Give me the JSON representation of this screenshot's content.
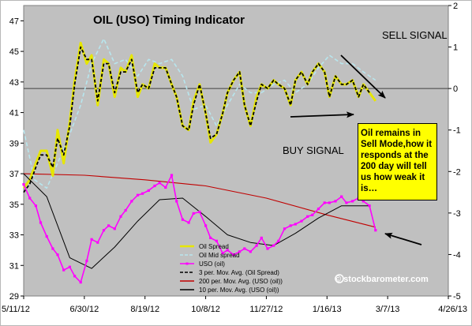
{
  "chart_data": {
    "type": "line",
    "title": "OIL (USO) Timing Indicator",
    "x_tick_labels": [
      "5/11/12",
      "6/30/12",
      "8/19/12",
      "10/8/12",
      "11/27/12",
      "1/16/13",
      "3/7/13",
      "4/26/13"
    ],
    "x_range": [
      "2012-05-11",
      "2013-04-26"
    ],
    "left_axis": {
      "label": "",
      "ylim": [
        29,
        48
      ],
      "ticks": [
        29,
        31,
        33,
        35,
        37,
        39,
        41,
        43,
        45,
        47
      ]
    },
    "right_axis": {
      "label": "",
      "ylim": [
        -5,
        2
      ],
      "ticks": [
        -5,
        -4,
        -3,
        -2,
        -1,
        0,
        1,
        2
      ]
    },
    "reference_lines": [
      {
        "axis": "right",
        "value": 0,
        "color": "#404040"
      }
    ],
    "grid": false,
    "legend": {
      "placement": "bottom-center",
      "items": [
        {
          "label": "Oil Spread",
          "color": "#e6e600",
          "style": "solid"
        },
        {
          "label": "Oil Mid spread",
          "color": "#b7e6ee",
          "style": "dashed"
        },
        {
          "label": "USO (oil)",
          "color": "#ff00ff",
          "style": "solid-markers"
        },
        {
          "label": "3 per. Mov. Avg. (Oil Spread)",
          "color": "#000000",
          "style": "dashed"
        },
        {
          "label": "200 per. Mov. Avg. (USO (oil))",
          "color": "#c00000",
          "style": "solid"
        },
        {
          "label": "10 per. Mov. Avg. (USO (oil))",
          "color": "#000000",
          "style": "solid"
        }
      ]
    },
    "series": [
      {
        "name": "Oil Spread",
        "axis": "right",
        "color": "#e6e600",
        "x": [
          "2012-05-11",
          "2012-05-16",
          "2012-05-21",
          "2012-05-25",
          "2012-05-30",
          "2012-06-04",
          "2012-06-08",
          "2012-06-13",
          "2012-06-18",
          "2012-06-22",
          "2012-06-27",
          "2012-07-02",
          "2012-07-06",
          "2012-07-11",
          "2012-07-16",
          "2012-07-20",
          "2012-07-25",
          "2012-07-30",
          "2012-08-03",
          "2012-08-08",
          "2012-08-13",
          "2012-08-17",
          "2012-08-22",
          "2012-08-27",
          "2012-08-31",
          "2012-09-05",
          "2012-09-10",
          "2012-09-14",
          "2012-09-19",
          "2012-09-24",
          "2012-09-28",
          "2012-10-03",
          "2012-10-08",
          "2012-10-12",
          "2012-10-17",
          "2012-10-22",
          "2012-10-26",
          "2012-10-31",
          "2012-11-05",
          "2012-11-09",
          "2012-11-14",
          "2012-11-19",
          "2012-11-23",
          "2012-11-28",
          "2012-12-03",
          "2012-12-07",
          "2012-12-12",
          "2012-12-17",
          "2012-12-21",
          "2012-12-26",
          "2012-12-31",
          "2013-01-04",
          "2013-01-09",
          "2013-01-14",
          "2013-01-18",
          "2013-01-23",
          "2013-01-28",
          "2013-02-01",
          "2013-02-06",
          "2013-02-11",
          "2013-02-15",
          "2013-02-20",
          "2013-02-25"
        ],
        "values": [
          -2.4,
          -2.2,
          -1.8,
          -1.5,
          -1.5,
          -2.1,
          -1.0,
          -1.8,
          -0.8,
          0.2,
          1.1,
          0.6,
          0.8,
          -0.4,
          0.7,
          0.6,
          -0.2,
          0.5,
          0.4,
          0.8,
          -0.2,
          0.1,
          0.0,
          0.6,
          0.5,
          0.5,
          0.1,
          -0.2,
          -0.9,
          -1.0,
          -0.3,
          0.1,
          -0.6,
          -1.3,
          -1.1,
          -0.6,
          -0.1,
          0.2,
          0.4,
          -0.4,
          -0.9,
          -0.2,
          0.1,
          0.0,
          0.2,
          0.1,
          0.0,
          -0.4,
          0.2,
          0.4,
          0.1,
          0.4,
          0.6,
          0.4,
          -0.2,
          0.3,
          0.1,
          0.1,
          0.2,
          -0.2,
          0.1,
          -0.1,
          -0.3
        ]
      },
      {
        "name": "Oil Mid spread",
        "axis": "right",
        "color": "#b7e6ee",
        "x": [
          "2012-05-11",
          "2012-05-20",
          "2012-05-30",
          "2012-06-08",
          "2012-06-18",
          "2012-06-27",
          "2012-07-06",
          "2012-07-16",
          "2012-07-25",
          "2012-08-03",
          "2012-08-13",
          "2012-08-22",
          "2012-08-31",
          "2012-09-10",
          "2012-09-19",
          "2012-09-28",
          "2012-10-08",
          "2012-10-17",
          "2012-10-26",
          "2012-11-05",
          "2012-11-14",
          "2012-11-23",
          "2012-12-03",
          "2012-12-12",
          "2012-12-21",
          "2012-12-31",
          "2013-01-09",
          "2013-01-18",
          "2013-01-28",
          "2013-02-06",
          "2013-02-15",
          "2013-02-25"
        ],
        "values": [
          -1.0,
          -2.2,
          -2.4,
          -1.8,
          -1.1,
          -0.4,
          0.6,
          1.2,
          0.6,
          0.7,
          0.3,
          0.7,
          0.6,
          0.7,
          0.3,
          -0.5,
          -0.4,
          -0.9,
          -0.4,
          0.1,
          -0.1,
          -0.1,
          0.1,
          0.2,
          -0.1,
          0.1,
          0.5,
          0.8,
          0.6,
          0.6,
          0.4,
          0.2
        ]
      },
      {
        "name": "USO (oil)",
        "axis": "left",
        "color": "#ff00ff",
        "x": [
          "2012-05-11",
          "2012-05-16",
          "2012-05-21",
          "2012-05-25",
          "2012-05-30",
          "2012-06-04",
          "2012-06-08",
          "2012-06-13",
          "2012-06-18",
          "2012-06-22",
          "2012-06-27",
          "2012-07-02",
          "2012-07-06",
          "2012-07-11",
          "2012-07-16",
          "2012-07-20",
          "2012-07-25",
          "2012-07-30",
          "2012-08-03",
          "2012-08-08",
          "2012-08-13",
          "2012-08-17",
          "2012-08-22",
          "2012-08-27",
          "2012-08-31",
          "2012-09-05",
          "2012-09-10",
          "2012-09-14",
          "2012-09-19",
          "2012-09-24",
          "2012-09-28",
          "2012-10-03",
          "2012-10-08",
          "2012-10-12",
          "2012-10-17",
          "2012-10-22",
          "2012-10-26",
          "2012-10-31",
          "2012-11-05",
          "2012-11-09",
          "2012-11-14",
          "2012-11-19",
          "2012-11-23",
          "2012-11-28",
          "2012-12-03",
          "2012-12-07",
          "2012-12-12",
          "2012-12-17",
          "2012-12-21",
          "2012-12-26",
          "2012-12-31",
          "2013-01-04",
          "2013-01-09",
          "2013-01-14",
          "2013-01-18",
          "2013-01-23",
          "2013-01-28",
          "2013-02-01",
          "2013-02-06",
          "2013-02-11",
          "2013-02-15",
          "2013-02-20",
          "2013-02-25"
        ],
        "values": [
          36.3,
          35.4,
          34.9,
          33.8,
          32.9,
          32.1,
          31.7,
          30.7,
          30.9,
          30.3,
          29.9,
          31.3,
          32.7,
          32.5,
          33.3,
          33.6,
          33.4,
          34.2,
          34.6,
          35.2,
          35.6,
          35.7,
          35.9,
          36.2,
          36.4,
          36.1,
          36.9,
          35.2,
          34.0,
          33.8,
          34.4,
          34.5,
          33.6,
          32.8,
          32.6,
          31.8,
          32.0,
          31.7,
          31.9,
          32.1,
          31.9,
          32.3,
          32.8,
          32.1,
          32.3,
          32.6,
          33.4,
          33.6,
          33.7,
          33.9,
          34.2,
          34.3,
          34.7,
          35.1,
          35.1,
          35.2,
          35.5,
          35.1,
          35.2,
          35.4,
          35.2,
          34.9,
          33.3
        ]
      },
      {
        "name": "3 per. Mov. Avg. (Oil Spread)",
        "axis": "right",
        "color": "#000000",
        "x": [
          "2012-05-11",
          "2012-05-16",
          "2012-05-21",
          "2012-05-25",
          "2012-05-30",
          "2012-06-04",
          "2012-06-08",
          "2012-06-13",
          "2012-06-18",
          "2012-06-22",
          "2012-06-27",
          "2012-07-02",
          "2012-07-06",
          "2012-07-11",
          "2012-07-16",
          "2012-07-20",
          "2012-07-25",
          "2012-07-30",
          "2012-08-03",
          "2012-08-08",
          "2012-08-13",
          "2012-08-17",
          "2012-08-22",
          "2012-08-27",
          "2012-08-31",
          "2012-09-05",
          "2012-09-10",
          "2012-09-14",
          "2012-09-19",
          "2012-09-24",
          "2012-09-28",
          "2012-10-03",
          "2012-10-08",
          "2012-10-12",
          "2012-10-17",
          "2012-10-22",
          "2012-10-26",
          "2012-10-31",
          "2012-11-05",
          "2012-11-09",
          "2012-11-14",
          "2012-11-19",
          "2012-11-23",
          "2012-11-28",
          "2012-12-03",
          "2012-12-07",
          "2012-12-12",
          "2012-12-17",
          "2012-12-21",
          "2012-12-26",
          "2012-12-31",
          "2013-01-04",
          "2013-01-09",
          "2013-01-14",
          "2013-01-18",
          "2013-01-23",
          "2013-01-28",
          "2013-02-01",
          "2013-02-06",
          "2013-02-11",
          "2013-02-15",
          "2013-02-20"
        ],
        "values": [
          -2.5,
          -2.3,
          -1.9,
          -1.6,
          -1.6,
          -1.9,
          -1.2,
          -1.6,
          -0.9,
          0.1,
          1.0,
          0.7,
          0.7,
          -0.3,
          0.6,
          0.6,
          -0.1,
          0.4,
          0.4,
          0.7,
          -0.1,
          0.1,
          0.0,
          0.5,
          0.5,
          0.5,
          0.1,
          -0.2,
          -0.9,
          -1.0,
          -0.4,
          0.1,
          -0.6,
          -1.2,
          -1.1,
          -0.6,
          -0.1,
          0.2,
          0.4,
          -0.4,
          -0.9,
          -0.3,
          0.1,
          0.0,
          0.2,
          0.1,
          0.0,
          -0.4,
          0.2,
          0.4,
          0.1,
          0.4,
          0.6,
          0.4,
          -0.2,
          0.3,
          0.1,
          0.1,
          0.2,
          -0.2,
          0.1,
          -0.1
        ]
      },
      {
        "name": "200 per. Mov. Avg. (USO (oil))",
        "axis": "left",
        "color": "#c00000",
        "x": [
          "2012-05-11",
          "2012-06-30",
          "2012-08-19",
          "2012-10-08",
          "2012-11-27",
          "2013-01-16",
          "2013-02-25"
        ],
        "values": [
          37.0,
          36.9,
          36.6,
          36.2,
          35.4,
          34.3,
          33.5
        ]
      },
      {
        "name": "10 per. Mov. Avg. (USO (oil))",
        "axis": "left",
        "color": "#000000",
        "x": [
          "2012-05-11",
          "2012-05-30",
          "2012-06-18",
          "2012-07-06",
          "2012-07-25",
          "2012-08-13",
          "2012-08-31",
          "2012-09-19",
          "2012-10-08",
          "2012-10-26",
          "2012-11-14",
          "2012-12-03",
          "2012-12-21",
          "2013-01-09",
          "2013-01-28",
          "2013-02-20"
        ],
        "values": [
          37.0,
          35.5,
          31.5,
          30.8,
          32.2,
          33.9,
          35.3,
          35.4,
          34.2,
          33.0,
          32.5,
          32.3,
          33.1,
          34.1,
          34.9,
          34.9
        ]
      }
    ],
    "annotations": [
      {
        "text": "SELL  SIGNAL",
        "near": "top-right"
      },
      {
        "text": "BUY  SIGNAL",
        "near": "center-right"
      },
      {
        "text": "Oil remains in Sell Mode,how it responds at the 200 day will tell us how weak it is…",
        "box": "yellow"
      },
      {
        "text": "© stockbarometer.com",
        "near": "bottom-right"
      }
    ]
  }
}
